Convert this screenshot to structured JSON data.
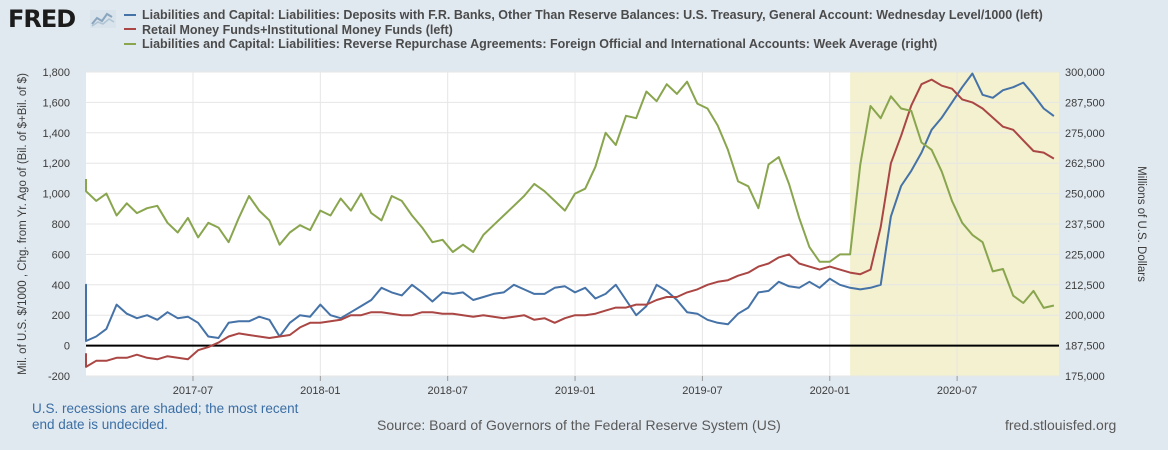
{
  "header": {
    "logo_text": "FRED",
    "logo_icon": "chart-line-icon"
  },
  "legend": [
    {
      "label": "Liabilities and Capital: Liabilities: Deposits with F.R. Banks, Other Than Reserve Balances: U.S. Treasury, General Account: Wednesday Level/1000 (left)",
      "color": "#4572a7"
    },
    {
      "label": "Retail Money Funds+Institutional Money Funds (left)",
      "color": "#aa4643"
    },
    {
      "label": "Liabilities and Capital: Liabilities: Reverse Repurchase Agreements: Foreign Official and International Accounts: Week Average (right)",
      "color": "#89a54e"
    }
  ],
  "footer": {
    "note_line1": "U.S. recessions are shaded; the most recent",
    "note_line2": "end date is undecided.",
    "source": "Source: Board of Governors of the Federal Reserve System (US)",
    "site": "fred.stlouisfed.org"
  },
  "chart_data": {
    "type": "line",
    "title": "",
    "xlabel": "",
    "ylabel_left": "Mil. of U.S. $/1000 , Chg. from Yr. Ago of (Bil. of $+Bil. of $)",
    "ylabel_right": "Millions of U.S. Dollars",
    "x_range": [
      2017.08,
      2020.9
    ],
    "ylim_left": [
      -200,
      1800
    ],
    "ylim_right": [
      175000,
      300000
    ],
    "left_ticks": [
      -200,
      0,
      200,
      400,
      600,
      800,
      1000,
      1200,
      1400,
      1600,
      1800
    ],
    "left_tick_labels": [
      "-200",
      "0",
      "200",
      "400",
      "600",
      "800",
      "1,000",
      "1,200",
      "1,400",
      "1,600",
      "1,800"
    ],
    "right_ticks": [
      175000,
      187500,
      200000,
      212500,
      225000,
      237500,
      250000,
      262500,
      275000,
      287500,
      300000
    ],
    "right_tick_labels": [
      "175,000",
      "187,500",
      "200,000",
      "212,500",
      "225,000",
      "237,500",
      "250,000",
      "262,500",
      "275,000",
      "287,500",
      "300,000"
    ],
    "x_ticks": [
      2017.5,
      2018.0,
      2018.5,
      2019.0,
      2019.5,
      2020.0,
      2020.5
    ],
    "x_tick_labels": [
      "2017-07",
      "2018-01",
      "2018-07",
      "2019-01",
      "2019-07",
      "2020-01",
      "2020-07"
    ],
    "recession": {
      "start": 2020.08,
      "end": 2020.9,
      "color": "#f3f1d0"
    },
    "zero_line": 0,
    "series": [
      {
        "name": "Treasury General Account (left)",
        "axis": "left",
        "color": "#4572a7",
        "x": [
          2016.92,
          2016.96,
          2017.0,
          2017.04,
          2017.08,
          2017.12,
          2017.16,
          2017.2,
          2017.24,
          2017.28,
          2017.32,
          2017.36,
          2017.4,
          2017.44,
          2017.48,
          2017.52,
          2017.56,
          2017.6,
          2017.64,
          2017.68,
          2017.72,
          2017.76,
          2017.8,
          2017.84,
          2017.88,
          2017.92,
          2017.96,
          2018.0,
          2018.04,
          2018.08,
          2018.12,
          2018.16,
          2018.2,
          2018.24,
          2018.28,
          2018.32,
          2018.36,
          2018.4,
          2018.44,
          2018.48,
          2018.52,
          2018.56,
          2018.6,
          2018.64,
          2018.68,
          2018.72,
          2018.76,
          2018.8,
          2018.84,
          2018.88,
          2018.92,
          2018.96,
          2019.0,
          2019.04,
          2019.08,
          2019.12,
          2019.16,
          2019.2,
          2019.24,
          2019.28,
          2019.32,
          2019.36,
          2019.4,
          2019.44,
          2019.48,
          2019.52,
          2019.56,
          2019.6,
          2019.64,
          2019.68,
          2019.72,
          2019.76,
          2019.8,
          2019.84,
          2019.88,
          2019.92,
          2019.96,
          2020.0,
          2020.04,
          2020.08,
          2020.12,
          2020.16,
          2020.2,
          2020.24,
          2020.28,
          2020.32,
          2020.36,
          2020.4,
          2020.44,
          2020.48,
          2020.52,
          2020.56,
          2020.6,
          2020.64,
          2020.68,
          2020.72,
          2020.76,
          2020.8,
          2020.84,
          2020.88
        ],
        "values": [
          370,
          400,
          290,
          180,
          30,
          60,
          110,
          270,
          210,
          180,
          200,
          170,
          220,
          180,
          190,
          150,
          60,
          50,
          150,
          160,
          160,
          190,
          170,
          60,
          150,
          200,
          190,
          270,
          200,
          180,
          220,
          260,
          300,
          380,
          350,
          330,
          400,
          350,
          290,
          350,
          340,
          350,
          300,
          320,
          340,
          350,
          400,
          370,
          340,
          340,
          380,
          390,
          350,
          380,
          310,
          340,
          400,
          300,
          200,
          260,
          400,
          360,
          300,
          220,
          210,
          170,
          150,
          140,
          210,
          250,
          350,
          360,
          420,
          390,
          380,
          420,
          380,
          440,
          400,
          380,
          370,
          380,
          400,
          850,
          1050,
          1150,
          1270,
          1420,
          1500,
          1600,
          1700,
          1790,
          1650,
          1630,
          1680,
          1700,
          1730,
          1650,
          1560,
          1510
        ]
      },
      {
        "name": "Retail Money Funds+Institutional Money Funds (left)",
        "axis": "left",
        "color": "#aa4643",
        "x": [
          2016.92,
          2016.96,
          2017.0,
          2017.04,
          2017.08,
          2017.12,
          2017.16,
          2017.2,
          2017.24,
          2017.28,
          2017.32,
          2017.36,
          2017.4,
          2017.44,
          2017.48,
          2017.52,
          2017.56,
          2017.6,
          2017.64,
          2017.68,
          2017.72,
          2017.76,
          2017.8,
          2017.84,
          2017.88,
          2017.92,
          2017.96,
          2018.0,
          2018.04,
          2018.08,
          2018.12,
          2018.16,
          2018.2,
          2018.24,
          2018.28,
          2018.32,
          2018.36,
          2018.4,
          2018.44,
          2018.48,
          2018.52,
          2018.56,
          2018.6,
          2018.64,
          2018.68,
          2018.72,
          2018.76,
          2018.8,
          2018.84,
          2018.88,
          2018.92,
          2018.96,
          2019.0,
          2019.04,
          2019.08,
          2019.12,
          2019.16,
          2019.2,
          2019.24,
          2019.28,
          2019.32,
          2019.36,
          2019.4,
          2019.44,
          2019.48,
          2019.52,
          2019.56,
          2019.6,
          2019.64,
          2019.68,
          2019.72,
          2019.76,
          2019.8,
          2019.84,
          2019.88,
          2019.92,
          2019.96,
          2020.0,
          2020.04,
          2020.08,
          2020.12,
          2020.16,
          2020.2,
          2020.24,
          2020.28,
          2020.32,
          2020.36,
          2020.4,
          2020.44,
          2020.48,
          2020.52,
          2020.56,
          2020.6,
          2020.64,
          2020.68,
          2020.72,
          2020.76,
          2020.8,
          2020.84,
          2020.88
        ],
        "values": [
          -50,
          -100,
          -90,
          -110,
          -140,
          -100,
          -100,
          -80,
          -80,
          -60,
          -80,
          -90,
          -70,
          -80,
          -90,
          -30,
          -10,
          20,
          60,
          80,
          70,
          60,
          50,
          60,
          70,
          120,
          150,
          150,
          160,
          170,
          200,
          200,
          220,
          220,
          210,
          200,
          200,
          220,
          220,
          210,
          210,
          200,
          190,
          200,
          190,
          180,
          190,
          200,
          170,
          180,
          150,
          180,
          200,
          200,
          210,
          230,
          250,
          250,
          270,
          270,
          300,
          320,
          320,
          350,
          370,
          400,
          420,
          430,
          460,
          480,
          520,
          540,
          580,
          600,
          540,
          520,
          500,
          520,
          500,
          480,
          470,
          500,
          780,
          1200,
          1380,
          1580,
          1720,
          1750,
          1710,
          1690,
          1620,
          1600,
          1560,
          1500,
          1440,
          1420,
          1350,
          1280,
          1270,
          1230
        ]
      },
      {
        "name": "Reverse Repo Foreign Official (right)",
        "axis": "right",
        "color": "#89a54e",
        "x": [
          2016.92,
          2016.96,
          2017.0,
          2017.04,
          2017.08,
          2017.12,
          2017.16,
          2017.2,
          2017.24,
          2017.28,
          2017.32,
          2017.36,
          2017.4,
          2017.44,
          2017.48,
          2017.52,
          2017.56,
          2017.6,
          2017.64,
          2017.68,
          2017.72,
          2017.76,
          2017.8,
          2017.84,
          2017.88,
          2017.92,
          2017.96,
          2018.0,
          2018.04,
          2018.08,
          2018.12,
          2018.16,
          2018.2,
          2018.24,
          2018.28,
          2018.32,
          2018.36,
          2018.4,
          2018.44,
          2018.48,
          2018.52,
          2018.56,
          2018.6,
          2018.64,
          2018.68,
          2018.72,
          2018.76,
          2018.8,
          2018.84,
          2018.88,
          2018.92,
          2018.96,
          2019.0,
          2019.04,
          2019.08,
          2019.12,
          2019.16,
          2019.2,
          2019.24,
          2019.28,
          2019.32,
          2019.36,
          2019.4,
          2019.44,
          2019.48,
          2019.52,
          2019.56,
          2019.6,
          2019.64,
          2019.68,
          2019.72,
          2019.76,
          2019.8,
          2019.84,
          2019.88,
          2019.92,
          2019.96,
          2020.0,
          2020.04,
          2020.08,
          2020.12,
          2020.16,
          2020.2,
          2020.24,
          2020.28,
          2020.32,
          2020.36,
          2020.4,
          2020.44,
          2020.48,
          2020.52,
          2020.56,
          2020.6,
          2020.64,
          2020.68,
          2020.72,
          2020.76,
          2020.8,
          2020.84,
          2020.88
        ],
        "values": [
          256000,
          255000,
          252000,
          255000,
          251000,
          247000,
          250000,
          241000,
          246000,
          242000,
          244000,
          245000,
          238000,
          234000,
          240000,
          232000,
          238000,
          236000,
          230000,
          240000,
          249000,
          243000,
          239000,
          229000,
          234000,
          237000,
          235000,
          243000,
          241000,
          248000,
          243000,
          250000,
          242000,
          239000,
          249000,
          247000,
          241000,
          236000,
          230000,
          231000,
          226000,
          229000,
          226000,
          233000,
          237000,
          241000,
          245000,
          249000,
          254000,
          251000,
          247000,
          243000,
          250000,
          252000,
          261000,
          275000,
          270000,
          282000,
          281000,
          292000,
          288000,
          295000,
          291000,
          296000,
          287000,
          285000,
          278000,
          268000,
          255000,
          253000,
          244000,
          262000,
          265000,
          254000,
          240000,
          228000,
          222000,
          222000,
          225000,
          225000,
          262000,
          286000,
          281000,
          290000,
          285000,
          284000,
          271000,
          268000,
          259000,
          247000,
          238000,
          233000,
          230000,
          218000,
          219000,
          208000,
          205000,
          210000,
          203000,
          204000
        ]
      }
    ]
  }
}
